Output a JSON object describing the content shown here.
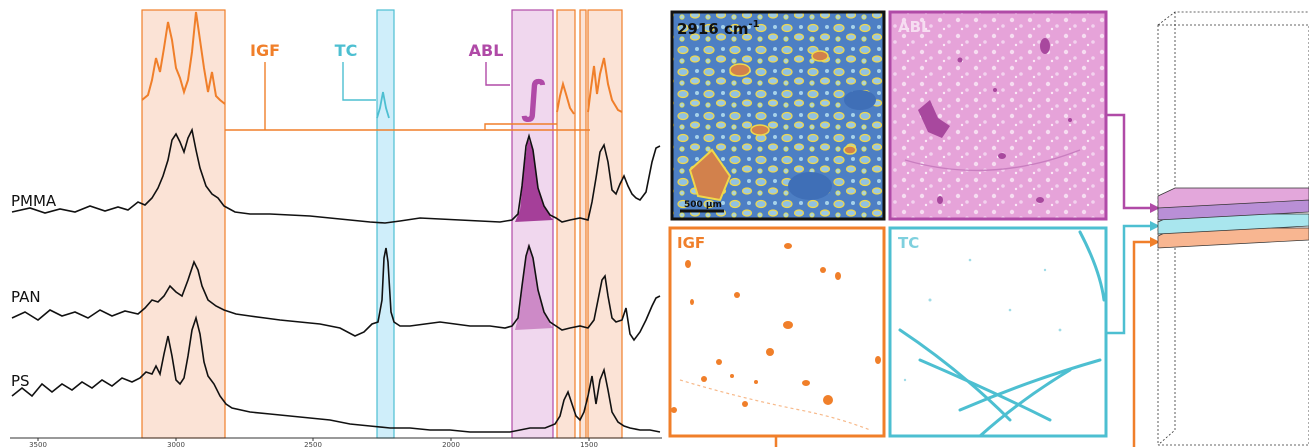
{
  "spectra_panel": {
    "window_labels": {
      "igf": "IGF",
      "tc": "TC",
      "abl": "ABL"
    },
    "integral_symbol": "∫",
    "spectrum_names": [
      "PMMA",
      "PAN",
      "PS"
    ],
    "x_ticks": [
      "3500",
      "3000",
      "2500",
      "2000",
      "1500"
    ]
  },
  "image_panels": {
    "raman": {
      "label": "2916 cm",
      "superscript": "-1",
      "scalebar": "500 μm"
    },
    "abl": {
      "label": "ABL"
    },
    "igf": {
      "label": "IGF"
    },
    "tc": {
      "label": "TC"
    }
  },
  "colors": {
    "igf": "#f07f2a",
    "tc": "#4dbfd1",
    "abl": "#b04aa7",
    "igf_fill": "#fbe3d6",
    "tc_fill": "#cfeefa",
    "abl_fill": "#f0d7ee",
    "stack_pink": "#e3a7db",
    "stack_purple": "#b98fd6",
    "stack_cyan": "#a9e6ee",
    "stack_orange": "#f8b691"
  }
}
